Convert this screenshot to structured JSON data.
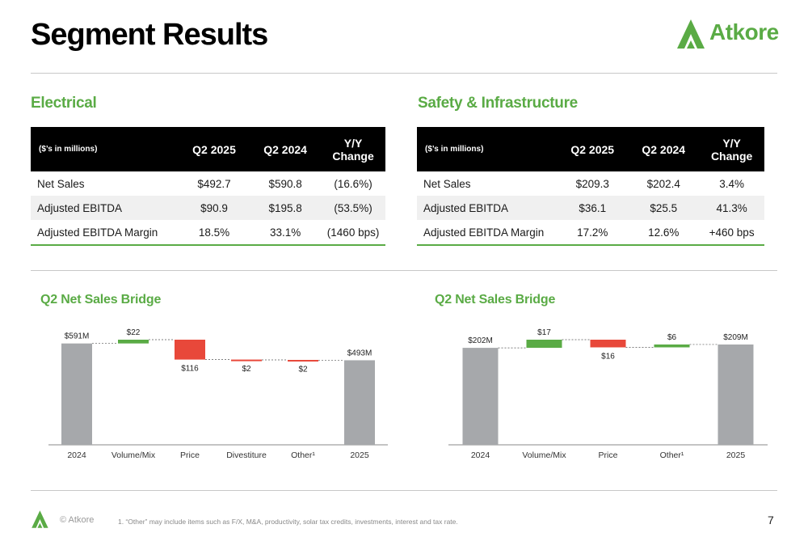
{
  "page": {
    "title": "Segment Results",
    "logo_text": "Atkore",
    "footer_copy": "© Atkore",
    "footnote": "1.     “Other” may include items such as F/X, M&A, productivity, solar tax credits, investments, interest and tax rate.",
    "page_number": "7",
    "colors": {
      "accent": "#5aab45",
      "negative": "#e8483a",
      "neutral_bar": "#a6a8ab",
      "header_bg": "#000000"
    }
  },
  "electrical": {
    "heading": "Electrical",
    "table": {
      "headers": [
        "($’s in millions)",
        "Q2 2025",
        "Q2 2024",
        "Y/Y",
        "Change"
      ],
      "rows": [
        [
          "Net Sales",
          "$492.7",
          "$590.8",
          "(16.6%)"
        ],
        [
          "Adjusted EBITDA",
          "$90.9",
          "$195.8",
          "(53.5%)"
        ],
        [
          "Adjusted EBITDA Margin",
          "18.5%",
          "33.1%",
          "(1460 bps)"
        ]
      ]
    },
    "bridge_heading": "Q2 Net Sales Bridge"
  },
  "safety": {
    "heading": "Safety & Infrastructure",
    "table": {
      "headers": [
        "($’s in millions)",
        "Q2 2025",
        "Q2 2024",
        "Y/Y",
        "Change"
      ],
      "rows": [
        [
          "Net Sales",
          "$209.3",
          "$202.4",
          "3.4%"
        ],
        [
          "Adjusted EBITDA",
          "$36.1",
          "$25.5",
          "41.3%"
        ],
        [
          "Adjusted EBITDA Margin",
          "17.2%",
          "12.6%",
          "+460 bps"
        ]
      ]
    },
    "bridge_heading": "Q2 Net Sales Bridge"
  },
  "chart_data": [
    {
      "type": "bar",
      "subtype": "waterfall",
      "title": "Q2 Net Sales Bridge",
      "categories": [
        "2024",
        "Volume/Mix",
        "Price",
        "Divestiture",
        "Other¹",
        "2025"
      ],
      "values": [
        591,
        22,
        -116,
        -2,
        -2,
        493
      ],
      "kinds": [
        "total",
        "delta",
        "delta",
        "delta",
        "delta",
        "total"
      ],
      "labels": [
        "$591M",
        "$22",
        "$116",
        "$2",
        "$2",
        "$493M"
      ]
    },
    {
      "type": "bar",
      "subtype": "waterfall",
      "title": "Q2 Net Sales Bridge",
      "categories": [
        "2024",
        "Volume/Mix",
        "Price",
        "Other¹",
        "2025"
      ],
      "values": [
        202,
        17,
        -16,
        6,
        209
      ],
      "kinds": [
        "total",
        "delta",
        "delta",
        "delta",
        "total"
      ],
      "labels": [
        "$202M",
        "$17",
        "$16",
        "$6",
        "$209M"
      ]
    }
  ]
}
